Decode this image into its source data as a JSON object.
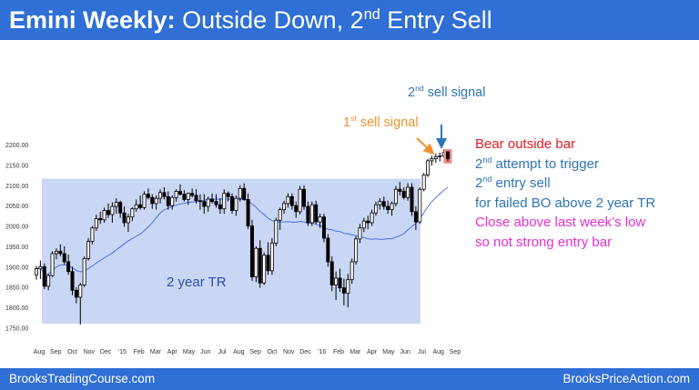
{
  "header": {
    "title_bold": "Emini Weekly:",
    "title_part1": " Outside Down, 2",
    "title_sup": "nd",
    "title_part2": " Entry Sell"
  },
  "annotations": {
    "sell2_num": "2",
    "sell2_sup": "nd",
    "sell2_text": " sell signal",
    "sell1_num": "1",
    "sell1_sup": "st",
    "sell1_text": " sell signal",
    "range_label": "2 year TR"
  },
  "notes": [
    {
      "pre": "Bear outside bar",
      "sup": "",
      "post": "",
      "color": "#e8191e"
    },
    {
      "pre": "2",
      "sup": "nd",
      "post": " attempt to trigger",
      "color": "#2e75b6"
    },
    {
      "pre": "2",
      "sup": "nd",
      "post": " entry sell",
      "color": "#2e75b6"
    },
    {
      "pre": "for failed BO above 2 year TR",
      "sup": "",
      "post": "",
      "color": "#2e75b6"
    },
    {
      "pre": "Close above last week’s low",
      "sup": "",
      "post": "",
      "color": "#e62ed4"
    },
    {
      "pre": "so not strong entry bar",
      "sup": "",
      "post": "",
      "color": "#e62ed4"
    }
  ],
  "footer": {
    "left": "BrooksTradingCourse.com",
    "right": "BrooksPriceAction.com"
  },
  "colors": {
    "header_bg": "#2f6fd6",
    "range_box": "#c9d6f4",
    "moving_average": "#4a72e8",
    "bull_body": "#ffffff",
    "bear_body": "#000000",
    "last_bar_highlight": "#f08a8a",
    "sell1_arrow": "#f0922e",
    "sell2_arrow": "#2e75b6"
  },
  "chart_data": {
    "type": "candlestick",
    "ylim": [
      1740,
      2220
    ],
    "y_ticks": [
      "2200.00",
      "2150.00",
      "2100.00",
      "2050.00",
      "2000.00",
      "1950.00",
      "1900.00",
      "1850.00",
      "1800.00",
      "1750.00"
    ],
    "x_tick_labels": [
      "Aug",
      "Sep",
      "Oct",
      "Nov",
      "Dec",
      "'15",
      "Feb",
      "Mar",
      "Apr",
      "May",
      "Jun",
      "Jul",
      "Aug",
      "Sep",
      "Oct",
      "Nov",
      "Dec",
      "'16",
      "Feb",
      "Mar",
      "Apr",
      "May",
      "Jun",
      "Jul",
      "Aug",
      "Sep"
    ],
    "range_box": {
      "price_top": 2116,
      "price_bottom": 1760
    },
    "series": [
      {
        "values": [
          [
            1880,
            1902,
            1868,
            1895
          ],
          [
            1895,
            1915,
            1870,
            1900
          ],
          [
            1900,
            1908,
            1845,
            1852
          ],
          [
            1852,
            1882,
            1842,
            1878
          ],
          [
            1878,
            1938,
            1875,
            1932
          ],
          [
            1932,
            1945,
            1918,
            1938
          ],
          [
            1938,
            1955,
            1925,
            1932
          ],
          [
            1932,
            1950,
            1905,
            1912
          ],
          [
            1912,
            1930,
            1880,
            1888
          ],
          [
            1888,
            1900,
            1830,
            1842
          ],
          [
            1842,
            1850,
            1810,
            1825
          ],
          [
            1825,
            1860,
            1758,
            1855
          ],
          [
            1855,
            1925,
            1850,
            1920
          ],
          [
            1920,
            1970,
            1915,
            1962
          ],
          [
            1962,
            2000,
            1955,
            1995
          ],
          [
            1995,
            2028,
            1988,
            2018
          ],
          [
            2018,
            2035,
            2005,
            2015
          ],
          [
            2015,
            2045,
            2008,
            2038
          ],
          [
            2038,
            2055,
            2020,
            2028
          ],
          [
            2028,
            2058,
            2008,
            2048
          ],
          [
            2048,
            2068,
            2030,
            2058
          ],
          [
            2058,
            2062,
            2020,
            2032
          ],
          [
            2032,
            2048,
            1998,
            2008
          ],
          [
            2008,
            2030,
            1985,
            2022
          ],
          [
            2022,
            2046,
            2012,
            2042
          ],
          [
            2042,
            2065,
            2035,
            2052
          ],
          [
            2052,
            2075,
            2040,
            2045
          ],
          [
            2045,
            2085,
            2040,
            2078
          ],
          [
            2078,
            2092,
            2065,
            2070
          ],
          [
            2070,
            2078,
            2042,
            2055
          ],
          [
            2055,
            2075,
            2040,
            2068
          ],
          [
            2068,
            2090,
            2055,
            2082
          ],
          [
            2082,
            2095,
            2065,
            2072
          ],
          [
            2072,
            2085,
            2040,
            2050
          ],
          [
            2050,
            2075,
            2040,
            2070
          ],
          [
            2070,
            2090,
            2060,
            2085
          ],
          [
            2085,
            2102,
            2075,
            2078
          ],
          [
            2078,
            2088,
            2060,
            2065
          ],
          [
            2065,
            2082,
            2052,
            2080
          ],
          [
            2080,
            2092,
            2070,
            2075
          ],
          [
            2075,
            2090,
            2055,
            2062
          ],
          [
            2062,
            2078,
            2040,
            2060
          ],
          [
            2060,
            2078,
            2030,
            2048
          ],
          [
            2048,
            2072,
            2035,
            2066
          ],
          [
            2066,
            2080,
            2055,
            2060
          ],
          [
            2060,
            2078,
            2045,
            2052
          ],
          [
            2052,
            2068,
            2030,
            2042
          ],
          [
            2042,
            2090,
            2030,
            2080
          ],
          [
            2080,
            2085,
            2060,
            2072
          ],
          [
            2072,
            2080,
            2030,
            2038
          ],
          [
            2038,
            2075,
            2025,
            2068
          ],
          [
            2068,
            2100,
            2060,
            2092
          ],
          [
            2092,
            2105,
            2062,
            2065
          ],
          [
            2065,
            2080,
            1992,
            2000
          ],
          [
            2000,
            2015,
            1865,
            1875
          ],
          [
            1875,
            1950,
            1862,
            1945
          ],
          [
            1945,
            1965,
            1848,
            1860
          ],
          [
            1860,
            1935,
            1855,
            1928
          ],
          [
            1928,
            1960,
            1880,
            1890
          ],
          [
            1890,
            1970,
            1880,
            1958
          ],
          [
            1958,
            2020,
            1950,
            2014
          ],
          [
            2014,
            2045,
            1990,
            2040
          ],
          [
            2040,
            2062,
            2030,
            2055
          ],
          [
            2055,
            2080,
            2045,
            2072
          ],
          [
            2072,
            2080,
            2040,
            2050
          ],
          [
            2050,
            2060,
            2020,
            2035
          ],
          [
            2035,
            2098,
            2028,
            2090
          ],
          [
            2090,
            2100,
            2040,
            2048
          ],
          [
            2048,
            2060,
            2000,
            2008
          ],
          [
            2008,
            2060,
            2000,
            2052
          ],
          [
            2052,
            2062,
            2005,
            2010
          ],
          [
            2010,
            2030,
            1995,
            2022
          ],
          [
            2022,
            2030,
            1960,
            1970
          ],
          [
            1970,
            1980,
            1900,
            1912
          ],
          [
            1912,
            1925,
            1840,
            1855
          ],
          [
            1855,
            1888,
            1818,
            1872
          ],
          [
            1872,
            1895,
            1838,
            1848
          ],
          [
            1848,
            1870,
            1805,
            1835
          ],
          [
            1835,
            1882,
            1800,
            1868
          ],
          [
            1868,
            1920,
            1858,
            1912
          ],
          [
            1912,
            1975,
            1905,
            1968
          ],
          [
            1968,
            2005,
            1958,
            1995
          ],
          [
            1995,
            2020,
            1985,
            2012
          ],
          [
            2012,
            2025,
            1992,
            2008
          ],
          [
            2008,
            2040,
            2000,
            2032
          ],
          [
            2032,
            2060,
            2025,
            2052
          ],
          [
            2052,
            2068,
            2040,
            2060
          ],
          [
            2060,
            2072,
            2040,
            2048
          ],
          [
            2048,
            2062,
            2030,
            2040
          ],
          [
            2040,
            2060,
            2025,
            2055
          ],
          [
            2055,
            2098,
            2048,
            2090
          ],
          [
            2090,
            2108,
            2075,
            2085
          ],
          [
            2085,
            2095,
            2065,
            2070
          ],
          [
            2070,
            2105,
            2062,
            2095
          ],
          [
            2095,
            2105,
            2025,
            2035
          ],
          [
            2035,
            2048,
            1990,
            2010
          ],
          [
            2010,
            2095,
            2005,
            2090
          ],
          [
            2090,
            2130,
            2085,
            2125
          ],
          [
            2125,
            2165,
            2120,
            2160
          ],
          [
            2160,
            2172,
            2148,
            2165
          ],
          [
            2165,
            2178,
            2155,
            2170
          ],
          [
            2170,
            2180,
            2158,
            2172
          ],
          [
            2172,
            2188,
            2168,
            2180
          ],
          [
            2182,
            2184,
            2158,
            2165
          ]
        ]
      }
    ]
  }
}
